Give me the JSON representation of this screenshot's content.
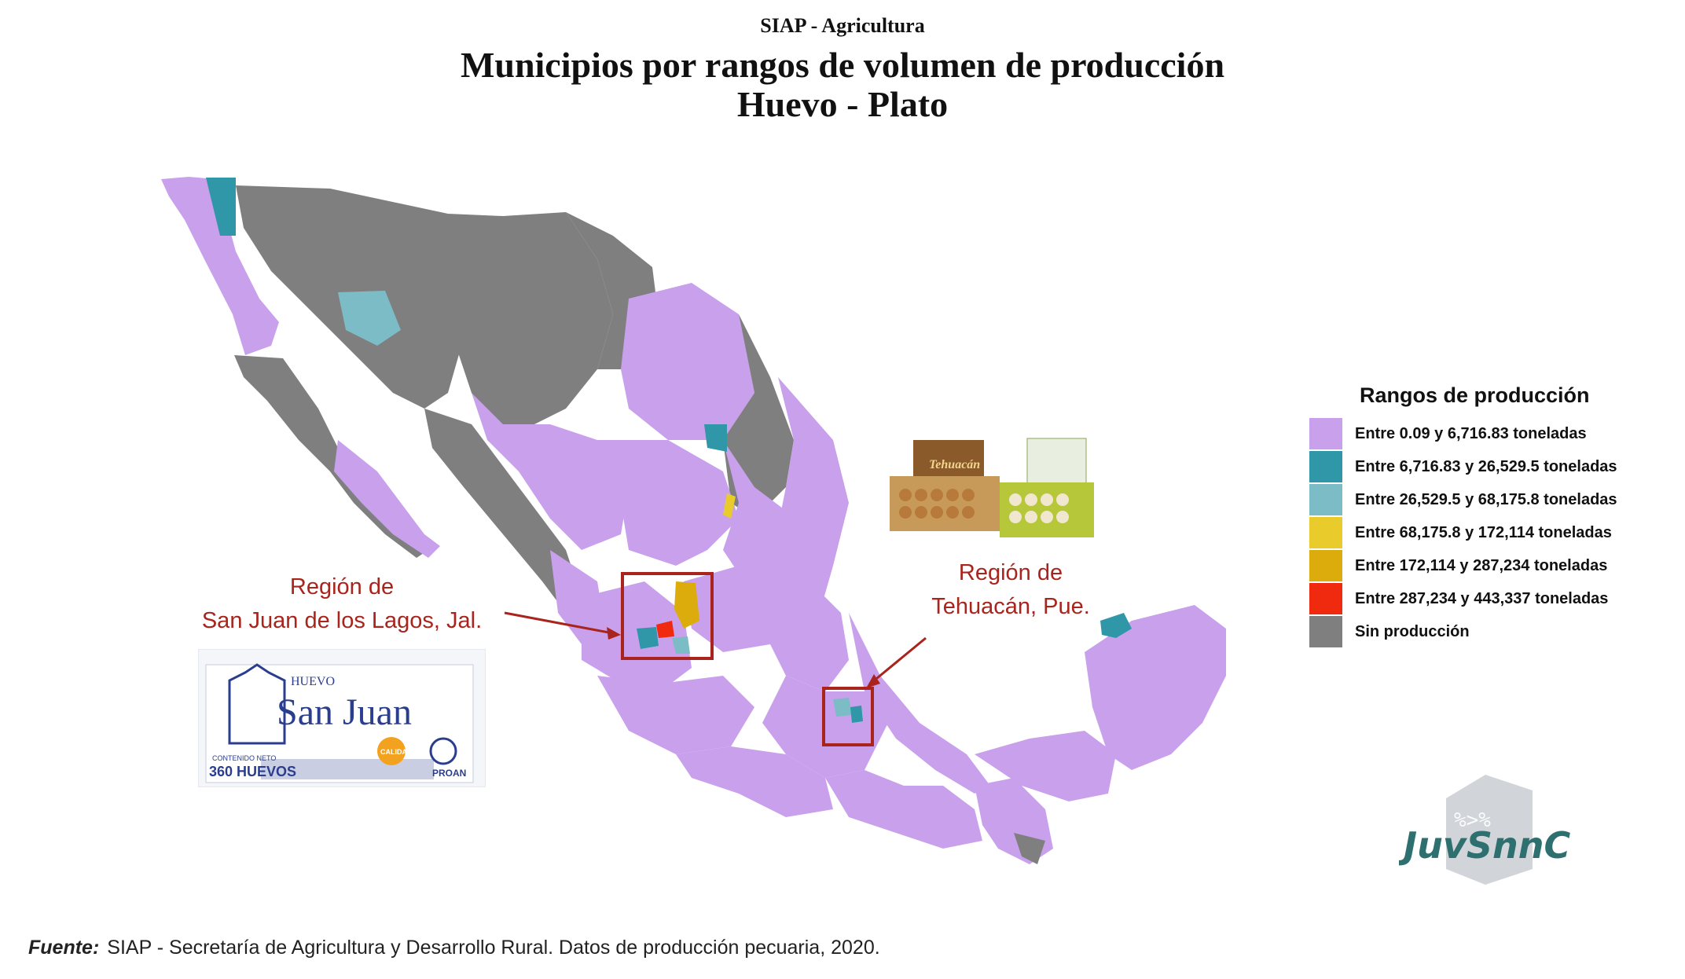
{
  "header": {
    "supertitle": "SIAP - Agricultura",
    "title_line1": "Municipios por rangos de volumen de producción",
    "title_line2": "Huevo - Plato"
  },
  "legend": {
    "title": "Rangos de producción",
    "items": [
      {
        "label": "Entre 0.09 y 6,716.83 toneladas",
        "color": "#c9a0ec"
      },
      {
        "label": "Entre 6,716.83 y 26,529.5 toneladas",
        "color": "#2f97a8"
      },
      {
        "label": "Entre 26,529.5 y 68,175.8 toneladas",
        "color": "#7bbcc6"
      },
      {
        "label": "Entre 68,175.8 y 172,114 toneladas",
        "color": "#e9cb2b"
      },
      {
        "label": "Entre 172,114 y 287,234 toneladas",
        "color": "#dcab0c"
      },
      {
        "label": "Entre 287,234 y 443,337 toneladas",
        "color": "#f02a0e"
      },
      {
        "label": "Sin producción",
        "color": "#7f7f7f"
      }
    ]
  },
  "annotations": {
    "san_juan": {
      "line1": "Región de",
      "line2": "San Juan de los Lagos, Jal."
    },
    "tehuacan": {
      "line1": "Región de",
      "line2": "Tehuacán, Pue."
    },
    "highlight_color": "#a8241c"
  },
  "product_san_juan": {
    "brand_small": "HUEVO",
    "brand_big": "San Juan",
    "content_label": "CONTENIDO NETO",
    "quantity": "360 HUEVOS",
    "seal": "CALIDAD",
    "maker": "PROAN"
  },
  "product_tehuacan": {
    "brand": "Tehuacán"
  },
  "watermark": {
    "text": "JuvSnnC",
    "symbol": "%>%"
  },
  "footer": {
    "label": "Fuente:",
    "text": "SIAP - Secretaría de Agricultura y Desarrollo Rural. Datos de producción pecuaria, 2020."
  }
}
